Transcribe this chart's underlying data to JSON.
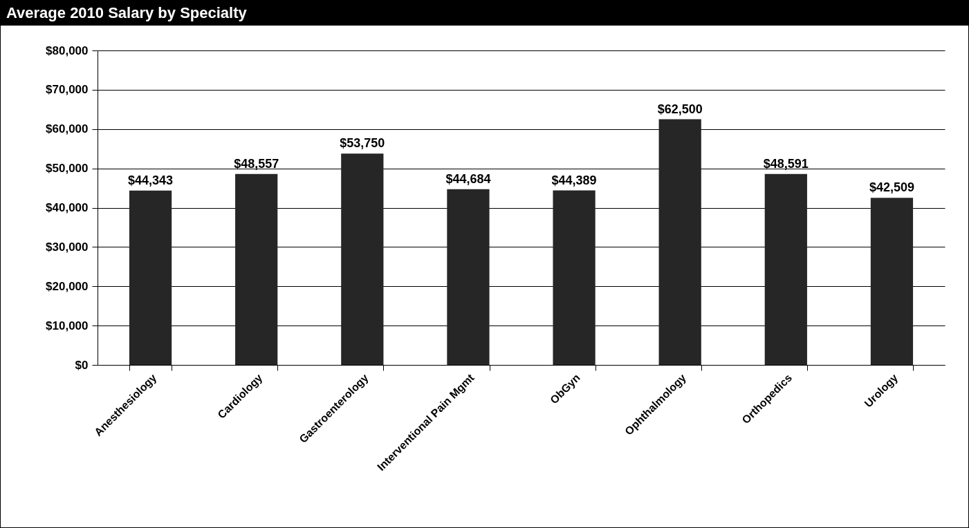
{
  "chart_data": {
    "type": "bar",
    "title": "Average 2010 Salary by Specialty",
    "categories": [
      "Anesthesiology",
      "Cardiology",
      "Gastroenterology",
      "Interventional Pain Mgmt",
      "ObGyn",
      "Ophthalmology",
      "Orthopedics",
      "Urology"
    ],
    "values": [
      44343,
      48557,
      53750,
      44684,
      44389,
      62500,
      48591,
      42509
    ],
    "value_labels": [
      "$44,343",
      "$48,557",
      "$53,750",
      "$44,684",
      "$44,389",
      "$62,500",
      "$48,591",
      "$42,509"
    ],
    "color": "#262626",
    "ylim": [
      0,
      80000
    ],
    "yticks": [
      {
        "value": 0,
        "label": "$0"
      },
      {
        "value": 10000,
        "label": "$10,000"
      },
      {
        "value": 20000,
        "label": "$20,000"
      },
      {
        "value": 30000,
        "label": "$30,000"
      },
      {
        "value": 40000,
        "label": "$40,000"
      },
      {
        "value": 50000,
        "label": "$50,000"
      },
      {
        "value": 60000,
        "label": "$60,000"
      },
      {
        "value": 70000,
        "label": "$70,000"
      },
      {
        "value": 80000,
        "label": "$80,000"
      }
    ],
    "grid": "y"
  }
}
